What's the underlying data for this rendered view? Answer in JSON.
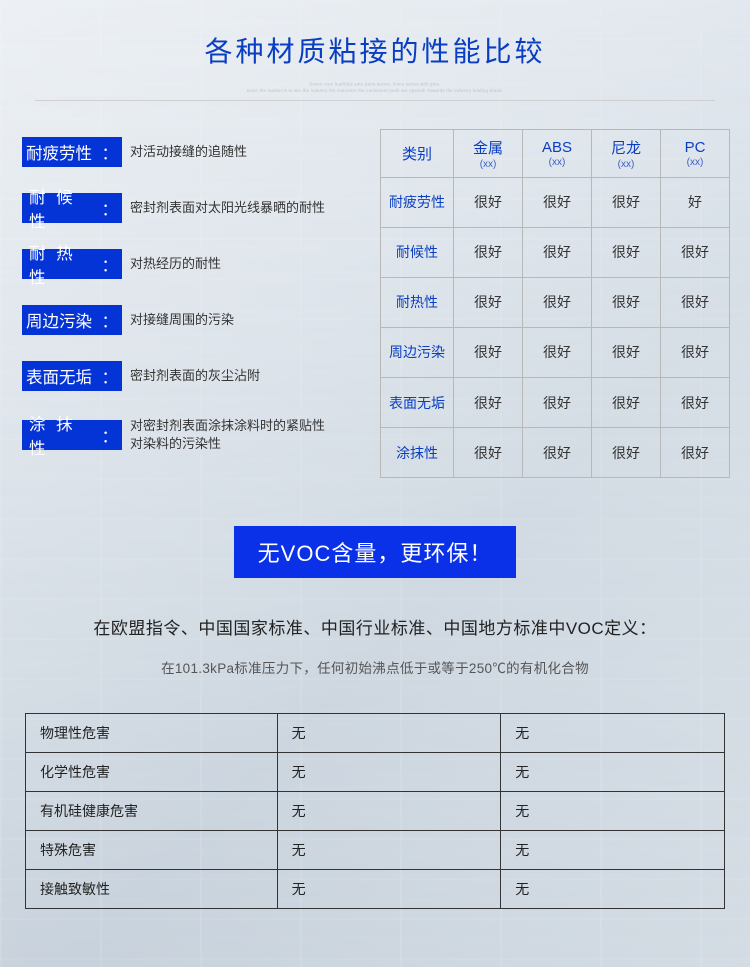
{
  "title": "各种材质粘接的性能比较",
  "subtitle_line1": "Seven core leadS&d auto parts series, home series with glue,",
  "subtitle_line2": "since the market is to win the industry the customer the consistent push are special! Towards the industry leading brand.",
  "definitions": [
    {
      "label": "耐疲劳性",
      "four": true,
      "desc": "对活动接缝的追随性"
    },
    {
      "label": "耐 候 性",
      "four": false,
      "desc": "密封剂表面对太阳光线暴晒的耐性"
    },
    {
      "label": "耐 热 性",
      "four": false,
      "desc": "对热经历的耐性"
    },
    {
      "label": "周边污染",
      "four": true,
      "desc": "对接缝周围的污染"
    },
    {
      "label": "表面无垢",
      "four": true,
      "desc": "密封剂表面的灰尘沾附"
    },
    {
      "label": "涂 抹 性",
      "four": false,
      "desc": "对密封剂表面涂抹涂料时的紧贴性\n对染料的污染性"
    }
  ],
  "perf_table": {
    "category_label": "类别",
    "columns": [
      {
        "name": "金属",
        "sub": "(xx)"
      },
      {
        "name": "ABS",
        "sub": "(xx)"
      },
      {
        "name": "尼龙",
        "sub": "(xx)"
      },
      {
        "name": "PC",
        "sub": "(xx)"
      }
    ],
    "row_headers": [
      "耐疲劳性",
      "耐候性",
      "耐热性",
      "周边污染",
      "表面无垢",
      "涂抹性"
    ],
    "cells": [
      [
        "很好",
        "很好",
        "很好",
        "好"
      ],
      [
        "很好",
        "很好",
        "很好",
        "很好"
      ],
      [
        "很好",
        "很好",
        "很好",
        "很好"
      ],
      [
        "很好",
        "很好",
        "很好",
        "很好"
      ],
      [
        "很好",
        "很好",
        "很好",
        "很好"
      ],
      [
        "很好",
        "很好",
        "很好",
        "很好"
      ]
    ]
  },
  "banner": "无VOC含量，更环保！",
  "voc_def_title": "在欧盟指令、中国国家标准、中国行业标准、中国地方标准中VOC定义：",
  "voc_def_body": "在101.3kPa标准压力下，任何初始沸点低于或等于250℃的有机化合物",
  "hazard_table": {
    "rows": [
      [
        "物理性危害",
        "无",
        "无"
      ],
      [
        "化学性危害",
        "无",
        "无"
      ],
      [
        "有机硅健康危害",
        "无",
        "无"
      ],
      [
        "特殊危害",
        "无",
        "无"
      ],
      [
        "接触致敏性",
        "无",
        "无"
      ]
    ]
  },
  "colors": {
    "title_color": "#0a3ec2",
    "label_bg": "#0433d6",
    "banner_bg": "#0a30e8",
    "table_border": "#b8b8b8",
    "hazard_border": "#333333",
    "text_dark": "#333333"
  }
}
